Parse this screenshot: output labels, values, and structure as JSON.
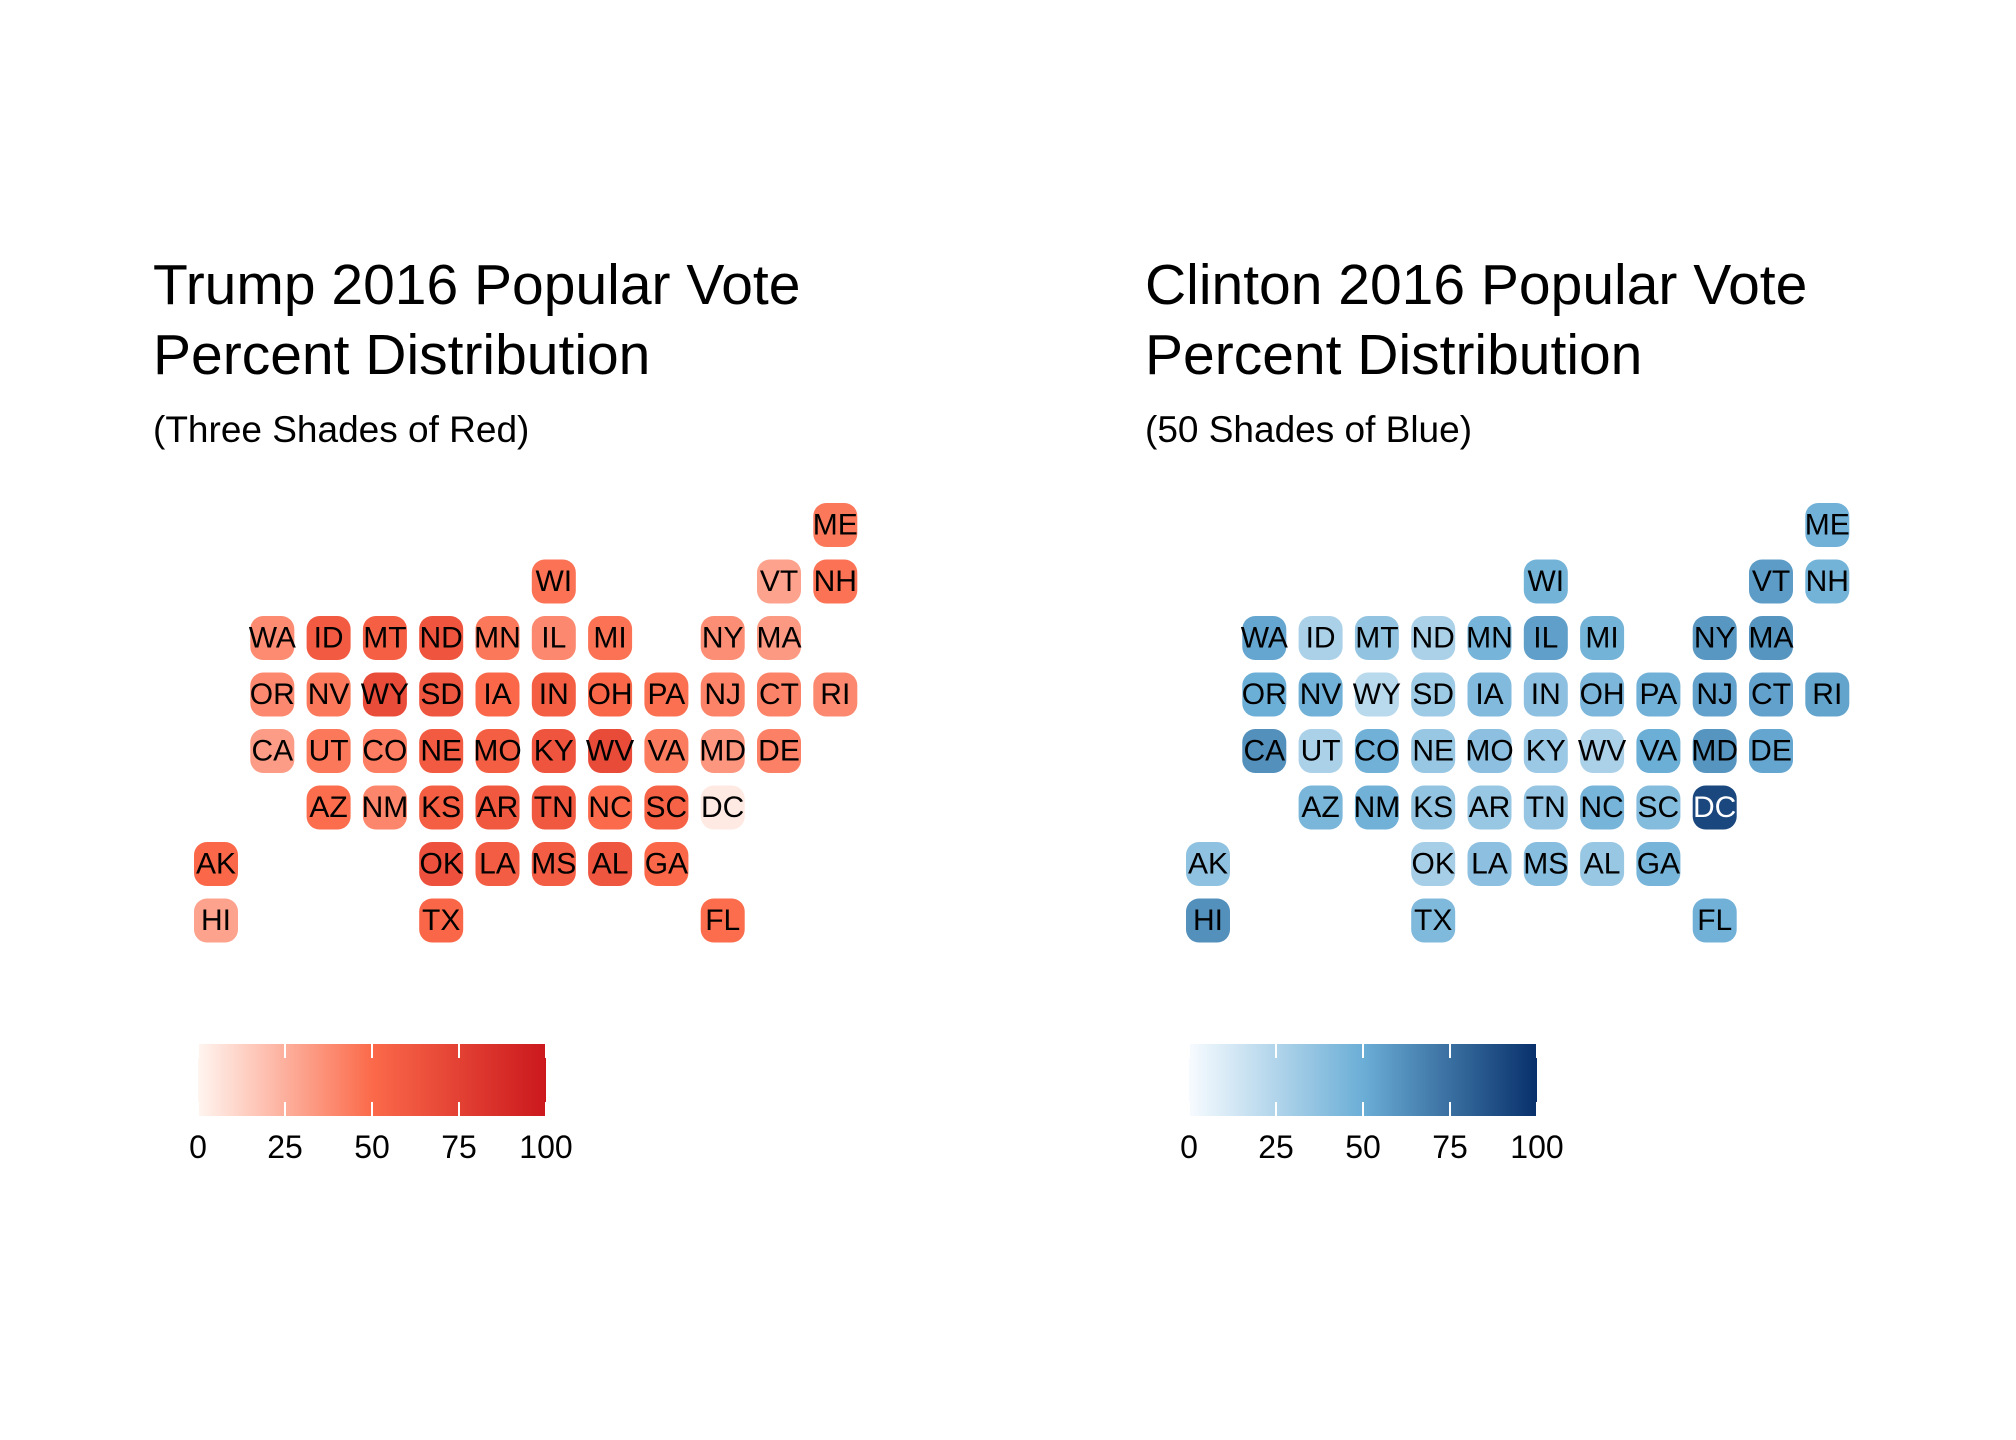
{
  "chart_data": [
    {
      "type": "heatmap",
      "title_line1": "Trump 2016 Popular Vote",
      "title_line2": "Percent Distribution",
      "subtitle": "(Three Shades of Red)",
      "legend": {
        "ticks": [
          0,
          25,
          50,
          75,
          100
        ],
        "range": [
          0,
          100
        ],
        "position": "bottom"
      },
      "colors": {
        "low": "#fff5f0",
        "mid": "#fb6a4a",
        "high": "#cb181d"
      },
      "values": {
        "ME": 45,
        "WI": 47,
        "VT": 30,
        "NH": 47,
        "WA": 38,
        "ID": 59,
        "MT": 56,
        "ND": 63,
        "MN": 45,
        "IL": 39,
        "MI": 47,
        "NY": 37,
        "MA": 33,
        "OR": 39,
        "NV": 45,
        "WY": 68,
        "SD": 62,
        "IA": 51,
        "IN": 57,
        "OH": 52,
        "PA": 48,
        "NJ": 41,
        "CT": 41,
        "RI": 39,
        "CA": 32,
        "UT": 45,
        "CO": 43,
        "NE": 59,
        "MO": 57,
        "KY": 63,
        "WV": 69,
        "VA": 44,
        "MD": 34,
        "DE": 42,
        "AZ": 49,
        "NM": 40,
        "KS": 57,
        "AR": 61,
        "TN": 61,
        "NC": 50,
        "SC": 55,
        "DC": 4,
        "AK": 51,
        "OK": 65,
        "LA": 58,
        "MS": 58,
        "AL": 62,
        "GA": 51,
        "HI": 30,
        "TX": 52,
        "FL": 49
      }
    },
    {
      "type": "heatmap",
      "title_line1": "Clinton 2016 Popular Vote",
      "title_line2": "Percent Distribution",
      "subtitle": "(50 Shades of Blue)",
      "legend": {
        "ticks": [
          0,
          25,
          50,
          75,
          100
        ],
        "range": [
          0,
          100
        ],
        "position": "bottom"
      },
      "colors": {
        "low": "#f7fbff",
        "mid": "#6baed6",
        "high": "#08306b"
      },
      "values": {
        "ME": 48,
        "WI": 47,
        "VT": 57,
        "NH": 47,
        "WA": 53,
        "ID": 27,
        "MT": 36,
        "ND": 27,
        "MN": 46,
        "IL": 56,
        "MI": 47,
        "NY": 59,
        "MA": 60,
        "OR": 50,
        "NV": 48,
        "WY": 22,
        "SD": 32,
        "IA": 42,
        "IN": 38,
        "OH": 44,
        "PA": 48,
        "NJ": 55,
        "CT": 55,
        "RI": 54,
        "CA": 62,
        "UT": 27,
        "CO": 48,
        "NE": 34,
        "MO": 38,
        "KY": 33,
        "WV": 27,
        "VA": 50,
        "MD": 60,
        "DE": 53,
        "AZ": 45,
        "NM": 48,
        "KS": 36,
        "AR": 34,
        "TN": 35,
        "NC": 46,
        "SC": 41,
        "DC": 91,
        "AK": 37,
        "OK": 29,
        "LA": 38,
        "MS": 40,
        "AL": 34,
        "GA": 46,
        "HI": 62,
        "TX": 43,
        "FL": 48
      }
    }
  ]
}
